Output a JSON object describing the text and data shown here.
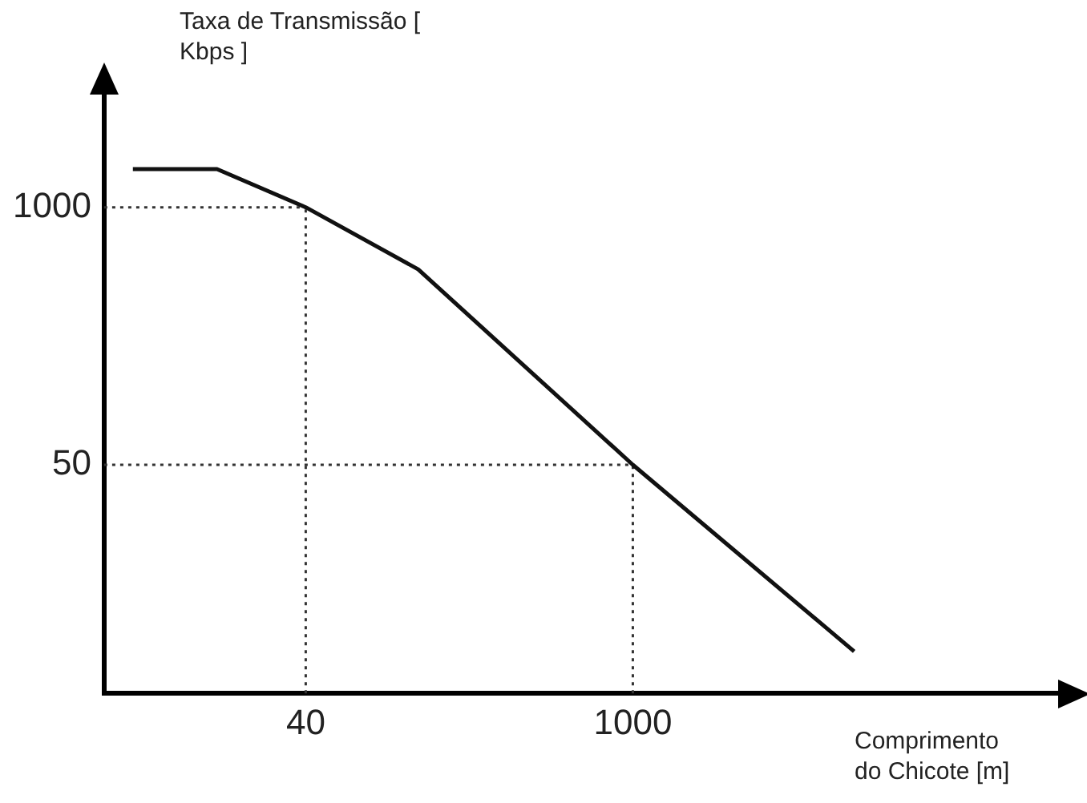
{
  "chart_data": {
    "type": "line",
    "xlabel": "Comprimento do Chicote [m]",
    "ylabel": "Taxa de Transmissão [ Kbps ]",
    "log": "xy",
    "xlim": [
      5.5,
      70000
    ],
    "ylim": [
      3.5,
      4000
    ],
    "xticks": [
      40,
      1000
    ],
    "yticks": [
      50,
      1000
    ],
    "series": [
      {
        "color": "#111111",
        "x": [
          7.3,
          16.7,
          40,
          121,
          1000,
          8830
        ],
        "values": [
          1560,
          1560,
          1000,
          486,
          50,
          5.7
        ]
      }
    ],
    "ref_lines": [
      {
        "axis": "x",
        "value": 40,
        "line_style": "dotted"
      },
      {
        "axis": "x",
        "value": 1000,
        "line_style": "dotted"
      },
      {
        "axis": "y",
        "value": 1000,
        "line_style": "dotted"
      },
      {
        "axis": "y",
        "value": 50,
        "line_style": "dotted"
      }
    ],
    "marker": "none",
    "grid": false,
    "legend": false
  }
}
